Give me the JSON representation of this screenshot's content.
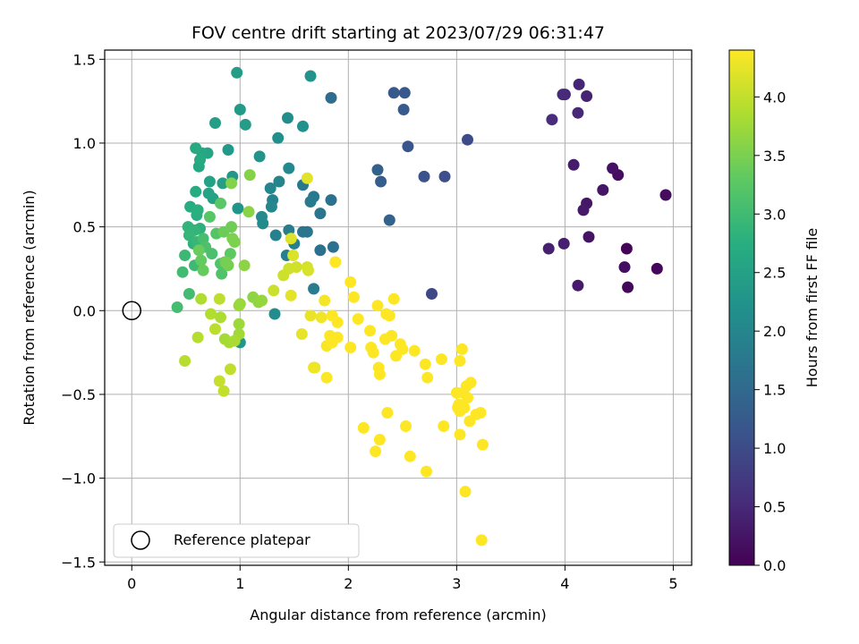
{
  "chart_data": {
    "type": "scatter",
    "title": "FOV centre drift starting at 2023/07/29 06:31:47",
    "xlabel": "Angular distance from reference (arcmin)",
    "ylabel": "Rotation from reference (arcmin)",
    "xlim": [
      -0.25,
      5.17
    ],
    "ylim": [
      -1.52,
      1.555
    ],
    "xticks": [
      0,
      1,
      2,
      3,
      4,
      5
    ],
    "xtick_labels": [
      "0",
      "1",
      "2",
      "3",
      "4",
      "5"
    ],
    "yticks": [
      -1.5,
      -1.0,
      -0.5,
      0.0,
      0.5,
      1.0,
      1.5
    ],
    "ytick_labels": [
      "−1.5",
      "−1.0",
      "−0.5",
      "0.0",
      "0.5",
      "1.0",
      "1.5"
    ],
    "grid": true,
    "legend": {
      "placement": "lower-left",
      "entries": [
        "Reference platepar"
      ]
    },
    "reference_point": {
      "x": 0,
      "y": 0
    },
    "colorbar": {
      "label": "Hours from first FF file",
      "colormap": "viridis",
      "range": [
        0,
        4.4
      ],
      "ticks": [
        0.0,
        0.5,
        1.0,
        1.5,
        2.0,
        2.5,
        3.0,
        3.5,
        4.0
      ],
      "tick_labels": [
        "0.0",
        "0.5",
        "1.0",
        "1.5",
        "2.0",
        "2.5",
        "3.0",
        "3.5",
        "4.0"
      ]
    },
    "series": [
      {
        "points": [
          [
            4.57,
            0.37,
            0.05
          ],
          [
            4.85,
            0.25,
            0.07
          ],
          [
            4.58,
            0.14,
            0.1
          ],
          [
            4.93,
            0.69,
            0.12
          ],
          [
            4.49,
            0.81,
            0.15
          ],
          [
            4.55,
            0.26,
            0.18
          ],
          [
            4.44,
            0.85,
            0.2
          ],
          [
            4.22,
            0.44,
            0.23
          ],
          [
            4.35,
            0.72,
            0.25
          ],
          [
            4.2,
            0.64,
            0.28
          ],
          [
            4.17,
            0.6,
            0.3
          ],
          [
            4.12,
            0.15,
            0.33
          ],
          [
            4.08,
            0.87,
            0.35
          ],
          [
            3.99,
            0.4,
            0.38
          ],
          [
            3.85,
            0.37,
            0.4
          ],
          [
            4.2,
            1.28,
            0.43
          ],
          [
            4.13,
            1.35,
            0.45
          ],
          [
            4.0,
            1.29,
            0.48
          ],
          [
            4.12,
            1.18,
            0.5
          ],
          [
            3.98,
            1.29,
            0.53
          ],
          [
            3.88,
            1.14,
            0.55
          ],
          [
            2.77,
            0.1,
            0.95
          ],
          [
            3.1,
            1.02,
            1.0
          ],
          [
            2.89,
            0.8,
            1.05
          ],
          [
            2.7,
            0.8,
            1.1
          ],
          [
            2.55,
            0.98,
            1.15
          ],
          [
            2.52,
            1.3,
            1.2
          ],
          [
            2.42,
            1.3,
            1.22
          ],
          [
            2.51,
            1.2,
            1.25
          ],
          [
            2.3,
            0.77,
            1.3
          ],
          [
            2.27,
            0.84,
            1.35
          ],
          [
            2.38,
            0.54,
            1.4
          ],
          [
            1.84,
            1.27,
            1.55
          ],
          [
            1.86,
            0.38,
            1.6
          ],
          [
            1.74,
            0.36,
            1.62
          ],
          [
            1.84,
            0.66,
            1.65
          ],
          [
            1.74,
            0.58,
            1.68
          ],
          [
            1.62,
            0.47,
            1.7
          ],
          [
            1.58,
            0.47,
            1.72
          ],
          [
            1.58,
            0.75,
            1.75
          ],
          [
            1.68,
            0.68,
            1.78
          ],
          [
            1.65,
            0.65,
            1.8
          ],
          [
            1.68,
            0.13,
            1.82
          ],
          [
            1.45,
            0.48,
            1.85
          ],
          [
            1.43,
            0.33,
            1.88
          ],
          [
            1.5,
            0.4,
            1.9
          ],
          [
            1.33,
            0.45,
            1.92
          ],
          [
            1.3,
            0.66,
            1.95
          ],
          [
            1.36,
            0.77,
            1.97
          ],
          [
            1.29,
            0.62,
            2.0
          ],
          [
            1.28,
            0.73,
            2.02
          ],
          [
            1.45,
            0.85,
            2.05
          ],
          [
            1.2,
            0.56,
            2.07
          ],
          [
            1.21,
            0.52,
            2.1
          ],
          [
            1.32,
            -0.02,
            2.12
          ],
          [
            1.44,
            1.15,
            2.15
          ],
          [
            1.35,
            1.03,
            2.17
          ],
          [
            1.58,
            1.1,
            2.2
          ],
          [
            1.65,
            1.4,
            2.22
          ],
          [
            1.18,
            0.92,
            2.25
          ],
          [
            0.98,
            0.61,
            2.27
          ],
          [
            1.0,
            -0.19,
            2.3
          ],
          [
            0.93,
            0.8,
            2.32
          ],
          [
            0.89,
            0.96,
            2.35
          ],
          [
            1.0,
            1.2,
            2.37
          ],
          [
            1.05,
            1.11,
            2.4
          ],
          [
            0.97,
            1.42,
            2.42
          ],
          [
            0.77,
            1.12,
            2.45
          ],
          [
            0.84,
            0.76,
            2.47
          ],
          [
            0.75,
            0.67,
            2.5
          ],
          [
            0.72,
            0.77,
            2.52
          ],
          [
            0.71,
            0.7,
            2.55
          ],
          [
            0.7,
            0.94,
            2.57
          ],
          [
            0.65,
            0.94,
            2.6
          ],
          [
            0.62,
            0.86,
            2.62
          ],
          [
            0.63,
            0.9,
            2.65
          ],
          [
            0.59,
            0.97,
            2.67
          ],
          [
            0.59,
            0.71,
            2.7
          ],
          [
            0.54,
            0.62,
            2.72
          ],
          [
            0.6,
            0.57,
            2.75
          ],
          [
            0.61,
            0.6,
            2.77
          ],
          [
            0.63,
            0.49,
            2.8
          ],
          [
            0.57,
            0.4,
            2.82
          ],
          [
            0.52,
            0.5,
            2.85
          ],
          [
            0.58,
            0.48,
            2.87
          ],
          [
            0.53,
            0.45,
            2.9
          ],
          [
            0.6,
            0.41,
            2.92
          ],
          [
            0.49,
            0.33,
            2.95
          ],
          [
            0.58,
            0.27,
            2.97
          ],
          [
            0.47,
            0.23,
            3.0
          ],
          [
            0.53,
            0.1,
            3.02
          ],
          [
            0.42,
            0.02,
            3.05
          ],
          [
            0.66,
            0.43,
            3.07
          ],
          [
            0.74,
            0.34,
            3.1
          ],
          [
            0.68,
            0.38,
            3.12
          ],
          [
            0.83,
            0.22,
            3.15
          ],
          [
            0.82,
            0.28,
            3.17
          ],
          [
            0.78,
            0.46,
            3.2
          ],
          [
            0.72,
            0.56,
            3.22
          ],
          [
            0.82,
            0.64,
            3.25
          ],
          [
            0.91,
            0.34,
            3.27
          ],
          [
            0.86,
            0.29,
            3.3
          ],
          [
            0.64,
            0.3,
            3.32
          ],
          [
            0.66,
            0.24,
            3.35
          ],
          [
            0.62,
            0.36,
            3.37
          ],
          [
            0.85,
            0.47,
            3.4
          ],
          [
            0.92,
            0.5,
            3.42
          ],
          [
            0.89,
            0.27,
            3.45
          ],
          [
            0.87,
            0.29,
            3.47
          ],
          [
            0.93,
            0.43,
            3.5
          ],
          [
            0.95,
            0.41,
            3.52
          ],
          [
            0.92,
            0.76,
            3.55
          ],
          [
            1.09,
            0.81,
            3.57
          ],
          [
            1.08,
            0.59,
            3.6
          ],
          [
            1.04,
            0.27,
            3.62
          ],
          [
            1.12,
            0.08,
            3.64
          ],
          [
            1.17,
            0.05,
            3.66
          ],
          [
            1.2,
            0.06,
            3.68
          ],
          [
            1.0,
            0.04,
            3.7
          ],
          [
            0.99,
            0.03,
            3.72
          ],
          [
            0.99,
            -0.08,
            3.74
          ],
          [
            0.99,
            -0.14,
            3.76
          ],
          [
            0.86,
            -0.17,
            3.78
          ],
          [
            0.9,
            -0.19,
            3.8
          ],
          [
            0.95,
            -0.18,
            3.82
          ],
          [
            0.82,
            -0.04,
            3.84
          ],
          [
            0.64,
            0.07,
            3.86
          ],
          [
            0.73,
            -0.02,
            3.88
          ],
          [
            0.61,
            -0.16,
            3.9
          ],
          [
            0.49,
            -0.3,
            3.92
          ],
          [
            0.77,
            -0.11,
            3.94
          ],
          [
            0.81,
            0.07,
            3.96
          ],
          [
            0.91,
            -0.35,
            3.98
          ],
          [
            0.85,
            -0.48,
            4.0
          ],
          [
            0.81,
            -0.42,
            4.02
          ],
          [
            1.31,
            0.12,
            4.04
          ],
          [
            1.4,
            0.21,
            4.06
          ],
          [
            1.45,
            0.25,
            4.08
          ],
          [
            1.52,
            0.26,
            4.1
          ],
          [
            1.62,
            0.26,
            4.12
          ],
          [
            1.63,
            0.24,
            4.14
          ],
          [
            1.49,
            0.33,
            4.16
          ],
          [
            1.47,
            0.43,
            4.18
          ],
          [
            1.62,
            0.79,
            4.2
          ],
          [
            1.47,
            0.09,
            4.22
          ],
          [
            1.57,
            -0.14,
            4.24
          ],
          [
            1.65,
            -0.03,
            4.26
          ],
          [
            1.68,
            -0.34,
            4.28
          ],
          [
            1.69,
            -0.34,
            4.3
          ],
          [
            1.75,
            -0.04,
            4.32
          ],
          [
            1.78,
            0.06,
            4.34
          ],
          [
            1.8,
            -0.21,
            4.36
          ],
          [
            1.8,
            -0.4,
            4.38
          ],
          [
            1.83,
            -0.15,
            4.4
          ],
          [
            1.85,
            -0.03,
            4.4
          ],
          [
            1.85,
            -0.19,
            4.4
          ],
          [
            1.9,
            -0.16,
            4.4
          ],
          [
            1.88,
            0.29,
            4.4
          ],
          [
            1.9,
            -0.07,
            4.4
          ],
          [
            2.02,
            0.17,
            4.4
          ],
          [
            2.05,
            0.08,
            4.4
          ],
          [
            2.02,
            -0.22,
            4.4
          ],
          [
            2.09,
            -0.05,
            4.4
          ],
          [
            2.14,
            -0.7,
            4.4
          ],
          [
            2.21,
            -0.22,
            4.4
          ],
          [
            2.2,
            -0.12,
            4.4
          ],
          [
            2.23,
            -0.25,
            4.4
          ],
          [
            2.25,
            -0.84,
            4.4
          ],
          [
            2.27,
            0.03,
            4.4
          ],
          [
            2.28,
            -0.34,
            4.4
          ],
          [
            2.29,
            -0.38,
            4.4
          ],
          [
            2.29,
            -0.77,
            4.4
          ],
          [
            2.34,
            -0.17,
            4.4
          ],
          [
            2.35,
            -0.02,
            4.4
          ],
          [
            2.36,
            -0.61,
            4.4
          ],
          [
            2.38,
            -0.03,
            4.4
          ],
          [
            2.4,
            -0.15,
            4.4
          ],
          [
            2.42,
            0.07,
            4.4
          ],
          [
            2.44,
            -0.27,
            4.4
          ],
          [
            2.48,
            -0.2,
            4.4
          ],
          [
            2.5,
            -0.23,
            4.4
          ],
          [
            2.53,
            -0.69,
            4.4
          ],
          [
            2.57,
            -0.87,
            4.4
          ],
          [
            2.61,
            -0.24,
            4.4
          ],
          [
            2.71,
            -0.32,
            4.4
          ],
          [
            2.73,
            -0.4,
            4.4
          ],
          [
            2.72,
            -0.96,
            4.4
          ],
          [
            2.86,
            -0.29,
            4.4
          ],
          [
            2.88,
            -0.69,
            4.4
          ],
          [
            3.0,
            -0.49,
            4.4
          ],
          [
            3.01,
            -0.58,
            4.4
          ],
          [
            3.02,
            -0.56,
            4.4
          ],
          [
            3.03,
            -0.3,
            4.4
          ],
          [
            3.03,
            -0.74,
            4.4
          ],
          [
            3.05,
            -0.23,
            4.4
          ],
          [
            3.06,
            -0.49,
            4.4
          ],
          [
            3.07,
            -0.58,
            4.4
          ],
          [
            3.09,
            -0.45,
            4.4
          ],
          [
            3.1,
            -0.52,
            4.4
          ],
          [
            3.13,
            -0.43,
            4.4
          ],
          [
            3.12,
            -0.66,
            4.4
          ],
          [
            3.18,
            -0.62,
            4.4
          ],
          [
            3.22,
            -0.61,
            4.4
          ],
          [
            3.24,
            -0.8,
            4.4
          ],
          [
            3.08,
            -1.08,
            4.4
          ],
          [
            3.23,
            -1.37,
            4.4
          ],
          [
            3.03,
            -0.6,
            4.4
          ]
        ]
      }
    ]
  }
}
